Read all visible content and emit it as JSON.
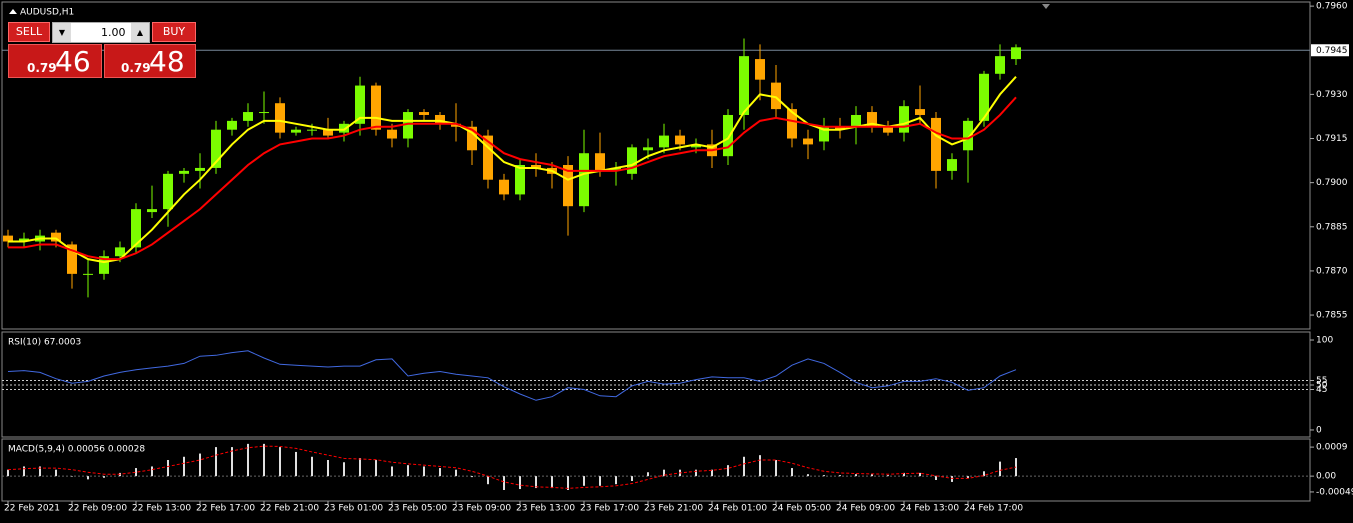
{
  "trade_panel": {
    "sell": "SELL",
    "buy": "BUY",
    "lot": "1.00",
    "sell_small": "0.79",
    "sell_big": "46",
    "buy_small": "0.79",
    "buy_big": "48"
  },
  "chart_data": [
    {
      "type": "candlestick",
      "title": "AUDUSD,H1",
      "categories": [
        "22 Feb 2021",
        null,
        null,
        null,
        "22 Feb 09:00",
        null,
        null,
        null,
        "22 Feb 13:00",
        null,
        null,
        null,
        "22 Feb 17:00",
        null,
        null,
        null,
        "22 Feb 21:00",
        null,
        null,
        null,
        "23 Feb 01:00",
        null,
        null,
        null,
        "23 Feb 05:00",
        null,
        null,
        null,
        "23 Feb 09:00",
        null,
        null,
        null,
        "23 Feb 13:00",
        null,
        null,
        null,
        "23 Feb 17:00",
        null,
        null,
        null,
        "23 Feb 21:00",
        null,
        null,
        null,
        "24 Feb 01:00",
        null,
        null,
        null,
        "24 Feb 05:00",
        null,
        null,
        null,
        "24 Feb 09:00",
        null,
        null,
        null,
        "24 Feb 13:00",
        null,
        null,
        null,
        "24 Feb 17:00",
        null,
        null,
        null
      ],
      "open": [
        0.7882,
        0.788,
        0.788,
        0.7883,
        0.7879,
        0.7869,
        0.7869,
        0.7875,
        0.7878,
        0.789,
        0.7891,
        0.7903,
        0.7904,
        0.7905,
        0.7918,
        0.7921,
        0.7924,
        0.7927,
        0.7917,
        0.7918,
        0.7918,
        0.7917,
        0.792,
        0.7933,
        0.7918,
        0.7915,
        0.7924,
        0.7923,
        0.792,
        0.7919,
        0.7916,
        0.7901,
        0.7896,
        0.7906,
        0.7905,
        0.7906,
        0.7892,
        0.791,
        0.7904,
        0.7903,
        0.7911,
        0.7912,
        0.7916,
        0.7912,
        0.7913,
        0.7909,
        0.7923,
        0.7942,
        0.7934,
        0.7925,
        0.7915,
        0.7914,
        0.7919,
        0.7919,
        0.7924,
        0.7919,
        0.7917,
        0.7925,
        0.7922,
        0.7904,
        0.7911,
        0.7921,
        0.7937,
        0.7942
      ],
      "high": [
        0.7884,
        0.7883,
        0.7884,
        0.7884,
        0.788,
        0.7874,
        0.7877,
        0.788,
        0.7893,
        0.7899,
        0.7904,
        0.7905,
        0.791,
        0.7921,
        0.7922,
        0.7927,
        0.7931,
        0.7929,
        0.7919,
        0.792,
        0.7922,
        0.7921,
        0.7936,
        0.7934,
        0.792,
        0.7925,
        0.7925,
        0.7924,
        0.7927,
        0.7921,
        0.7918,
        0.7903,
        0.7908,
        0.791,
        0.7907,
        0.7909,
        0.7918,
        0.7917,
        0.7907,
        0.7913,
        0.7915,
        0.792,
        0.7918,
        0.7915,
        0.7918,
        0.7925,
        0.7949,
        0.7947,
        0.794,
        0.7927,
        0.7918,
        0.7922,
        0.7922,
        0.7926,
        0.7926,
        0.7921,
        0.7928,
        0.7933,
        0.7924,
        0.791,
        0.7922,
        0.7938,
        0.7947,
        0.7947
      ],
      "low": [
        0.7878,
        0.7878,
        0.7877,
        0.7878,
        0.7864,
        0.7861,
        0.7867,
        0.7873,
        0.7876,
        0.7888,
        0.7885,
        0.79,
        0.7898,
        0.7903,
        0.7916,
        0.7919,
        0.792,
        0.7915,
        0.7916,
        0.7916,
        0.7915,
        0.7914,
        0.7916,
        0.7916,
        0.7912,
        0.7912,
        0.7921,
        0.7918,
        0.7914,
        0.7906,
        0.7898,
        0.7894,
        0.7894,
        0.7902,
        0.7898,
        0.7882,
        0.789,
        0.7902,
        0.7899,
        0.7901,
        0.7908,
        0.791,
        0.7911,
        0.791,
        0.7905,
        0.7906,
        0.7918,
        0.7928,
        0.7922,
        0.7912,
        0.7908,
        0.7911,
        0.7915,
        0.7913,
        0.7917,
        0.7916,
        0.7914,
        0.792,
        0.7898,
        0.7901,
        0.79,
        0.7919,
        0.7935,
        0.794
      ],
      "close": [
        0.788,
        0.7881,
        0.7882,
        0.788,
        0.7869,
        0.7869,
        0.7875,
        0.7878,
        0.7891,
        0.7891,
        0.7903,
        0.7904,
        0.7905,
        0.7918,
        0.7921,
        0.7924,
        0.7924,
        0.7917,
        0.7918,
        0.7918,
        0.7916,
        0.792,
        0.7933,
        0.7918,
        0.7915,
        0.7924,
        0.7923,
        0.792,
        0.7919,
        0.7911,
        0.7901,
        0.7896,
        0.7906,
        0.7905,
        0.7903,
        0.7892,
        0.791,
        0.7904,
        0.7905,
        0.7912,
        0.7912,
        0.7916,
        0.7913,
        0.7913,
        0.7909,
        0.7923,
        0.7943,
        0.7935,
        0.7925,
        0.7915,
        0.7913,
        0.7919,
        0.7918,
        0.7923,
        0.7919,
        0.7917,
        0.7926,
        0.7923,
        0.7904,
        0.7908,
        0.7921,
        0.7937,
        0.7943,
        0.7946
      ],
      "up_color": "#7cfc00",
      "down_color": "#ffa500",
      "series": [
        {
          "color": "#ffff00",
          "values": [
            0.788,
            0.788,
            0.7881,
            0.7881,
            0.7877,
            0.7874,
            0.7873,
            0.7874,
            0.7879,
            0.7884,
            0.789,
            0.7896,
            0.7901,
            0.7907,
            0.7913,
            0.7918,
            0.7921,
            0.7921,
            0.792,
            0.7919,
            0.7918,
            0.7918,
            0.7922,
            0.7922,
            0.7921,
            0.7921,
            0.7921,
            0.7921,
            0.792,
            0.7917,
            0.7912,
            0.7907,
            0.7905,
            0.7905,
            0.7904,
            0.7901,
            0.7903,
            0.7904,
            0.7905,
            0.7906,
            0.7909,
            0.7911,
            0.7912,
            0.7913,
            0.7912,
            0.7915,
            0.7924,
            0.793,
            0.7929,
            0.7924,
            0.792,
            0.7918,
            0.7918,
            0.7919,
            0.792,
            0.7919,
            0.792,
            0.7922,
            0.7916,
            0.7913,
            0.7915,
            0.7922,
            0.793,
            0.7936
          ]
        },
        {
          "color": "#ff0000",
          "values": [
            0.7878,
            0.7878,
            0.7879,
            0.7879,
            0.7877,
            0.7875,
            0.7874,
            0.7874,
            0.7876,
            0.7879,
            0.7883,
            0.7887,
            0.7891,
            0.7896,
            0.7901,
            0.7906,
            0.791,
            0.7913,
            0.7914,
            0.7915,
            0.7915,
            0.7916,
            0.7918,
            0.7919,
            0.7919,
            0.792,
            0.792,
            0.792,
            0.792,
            0.7918,
            0.7914,
            0.791,
            0.7908,
            0.7907,
            0.7906,
            0.7904,
            0.7904,
            0.7904,
            0.7904,
            0.7905,
            0.7907,
            0.7909,
            0.791,
            0.7911,
            0.7911,
            0.7912,
            0.7917,
            0.7921,
            0.7922,
            0.7921,
            0.792,
            0.7919,
            0.7919,
            0.7919,
            0.7919,
            0.7919,
            0.7919,
            0.792,
            0.7917,
            0.7915,
            0.7915,
            0.7918,
            0.7923,
            0.7929
          ]
        }
      ],
      "bid": 0.7945,
      "ylim": [
        0.78506,
        0.79614
      ],
      "yticks": [
        {
          "value": 0.796,
          "label": "0.7960"
        },
        {
          "value": 0.793,
          "label": "0.7930"
        },
        0.7915,
        {
          "value": 0.79,
          "label": "0.7900"
        },
        0.7885,
        {
          "value": 0.787,
          "label": "0.7870"
        },
        0.7855
      ]
    },
    {
      "type": "line",
      "title": "RSI(10) 67.0003",
      "color": "#4169e1",
      "values": [
        65,
        66,
        64,
        57,
        52,
        54,
        60,
        64,
        67,
        69,
        71,
        74,
        82,
        83,
        86,
        88,
        80,
        73,
        72,
        71,
        70,
        71,
        71,
        78,
        79,
        60,
        63,
        65,
        62,
        60,
        58,
        48,
        40,
        33,
        37,
        47,
        45,
        38,
        37,
        49,
        54,
        51,
        52,
        56,
        59,
        58,
        58,
        54,
        60,
        72,
        79,
        74,
        64,
        53,
        47,
        49,
        54,
        54,
        57,
        53,
        44,
        47,
        60,
        67
      ],
      "ylim": [
        -6.7,
        107.8
      ],
      "yticks": [
        100,
        55,
        50,
        45,
        0
      ],
      "levels": [
        55,
        50,
        45
      ]
    },
    {
      "type": "histogram",
      "title": "MACD(5,9,4) 0.00056 0.00028",
      "color": "#e0e0e0",
      "signal_color": "#ff0000",
      "values": [
        0.0002,
        0.0003,
        0.0003,
        0.0002,
        0,
        -0.0001,
        -5e-05,
        0.0001,
        0.00025,
        0.0003,
        0.0005,
        0.0006,
        0.0007,
        0.0009,
        0.0009,
        0.001,
        0.001,
        0.0009,
        0.00075,
        0.0006,
        0.0005,
        0.00043,
        0.00056,
        0.0005,
        0.0003,
        0.00034,
        0.0003,
        0.00025,
        0.0002,
        -3e-05,
        -0.00025,
        -0.00043,
        -0.0004,
        -0.00037,
        -0.00037,
        -0.00043,
        -0.0003,
        -0.0003,
        -0.00025,
        -0.00015,
        0.00012,
        0.0002,
        0.0002,
        0.0002,
        0.0002,
        0.00034,
        0.0006,
        0.00065,
        0.0005,
        0.00025,
        6e-05,
        3e-05,
        3e-05,
        6e-05,
        6e-05,
        3e-05,
        0.0001,
        0.0001,
        -0.00012,
        -0.00018,
        -6e-05,
        0.00015,
        0.00045,
        0.00056
      ],
      "signal": [
        0.0002,
        0.00023,
        0.00025,
        0.00025,
        0.0002,
        0.00012,
        6e-05,
        6e-05,
        0.00012,
        0.0002,
        0.0003,
        0.0004,
        0.0005,
        0.00065,
        0.00078,
        0.00088,
        0.00093,
        0.00092,
        0.00086,
        0.00075,
        0.00065,
        0.00055,
        0.00053,
        0.00051,
        0.00043,
        0.00038,
        0.00034,
        0.0003,
        0.00026,
        0.00015,
        0,
        -0.00018,
        -0.00028,
        -0.00033,
        -0.00035,
        -0.00038,
        -0.00035,
        -0.00033,
        -0.0003,
        -0.00023,
        -0.0001,
        3e-05,
        0.0001,
        0.00015,
        0.00018,
        0.00024,
        0.00038,
        0.0005,
        0.0005,
        0.0004,
        0.00026,
        0.00015,
        0.0001,
        8e-05,
        7e-05,
        6e-05,
        8e-05,
        9e-05,
        1e-05,
        -7e-05,
        -7e-05,
        2e-05,
        0.00018,
        0.00028
      ],
      "ylim": [
        -0.00074,
        0.00112
      ],
      "yticks": [
        0.0009,
        {
          "value": 0,
          "label": "0.00"
        },
        -0.00049
      ]
    }
  ]
}
